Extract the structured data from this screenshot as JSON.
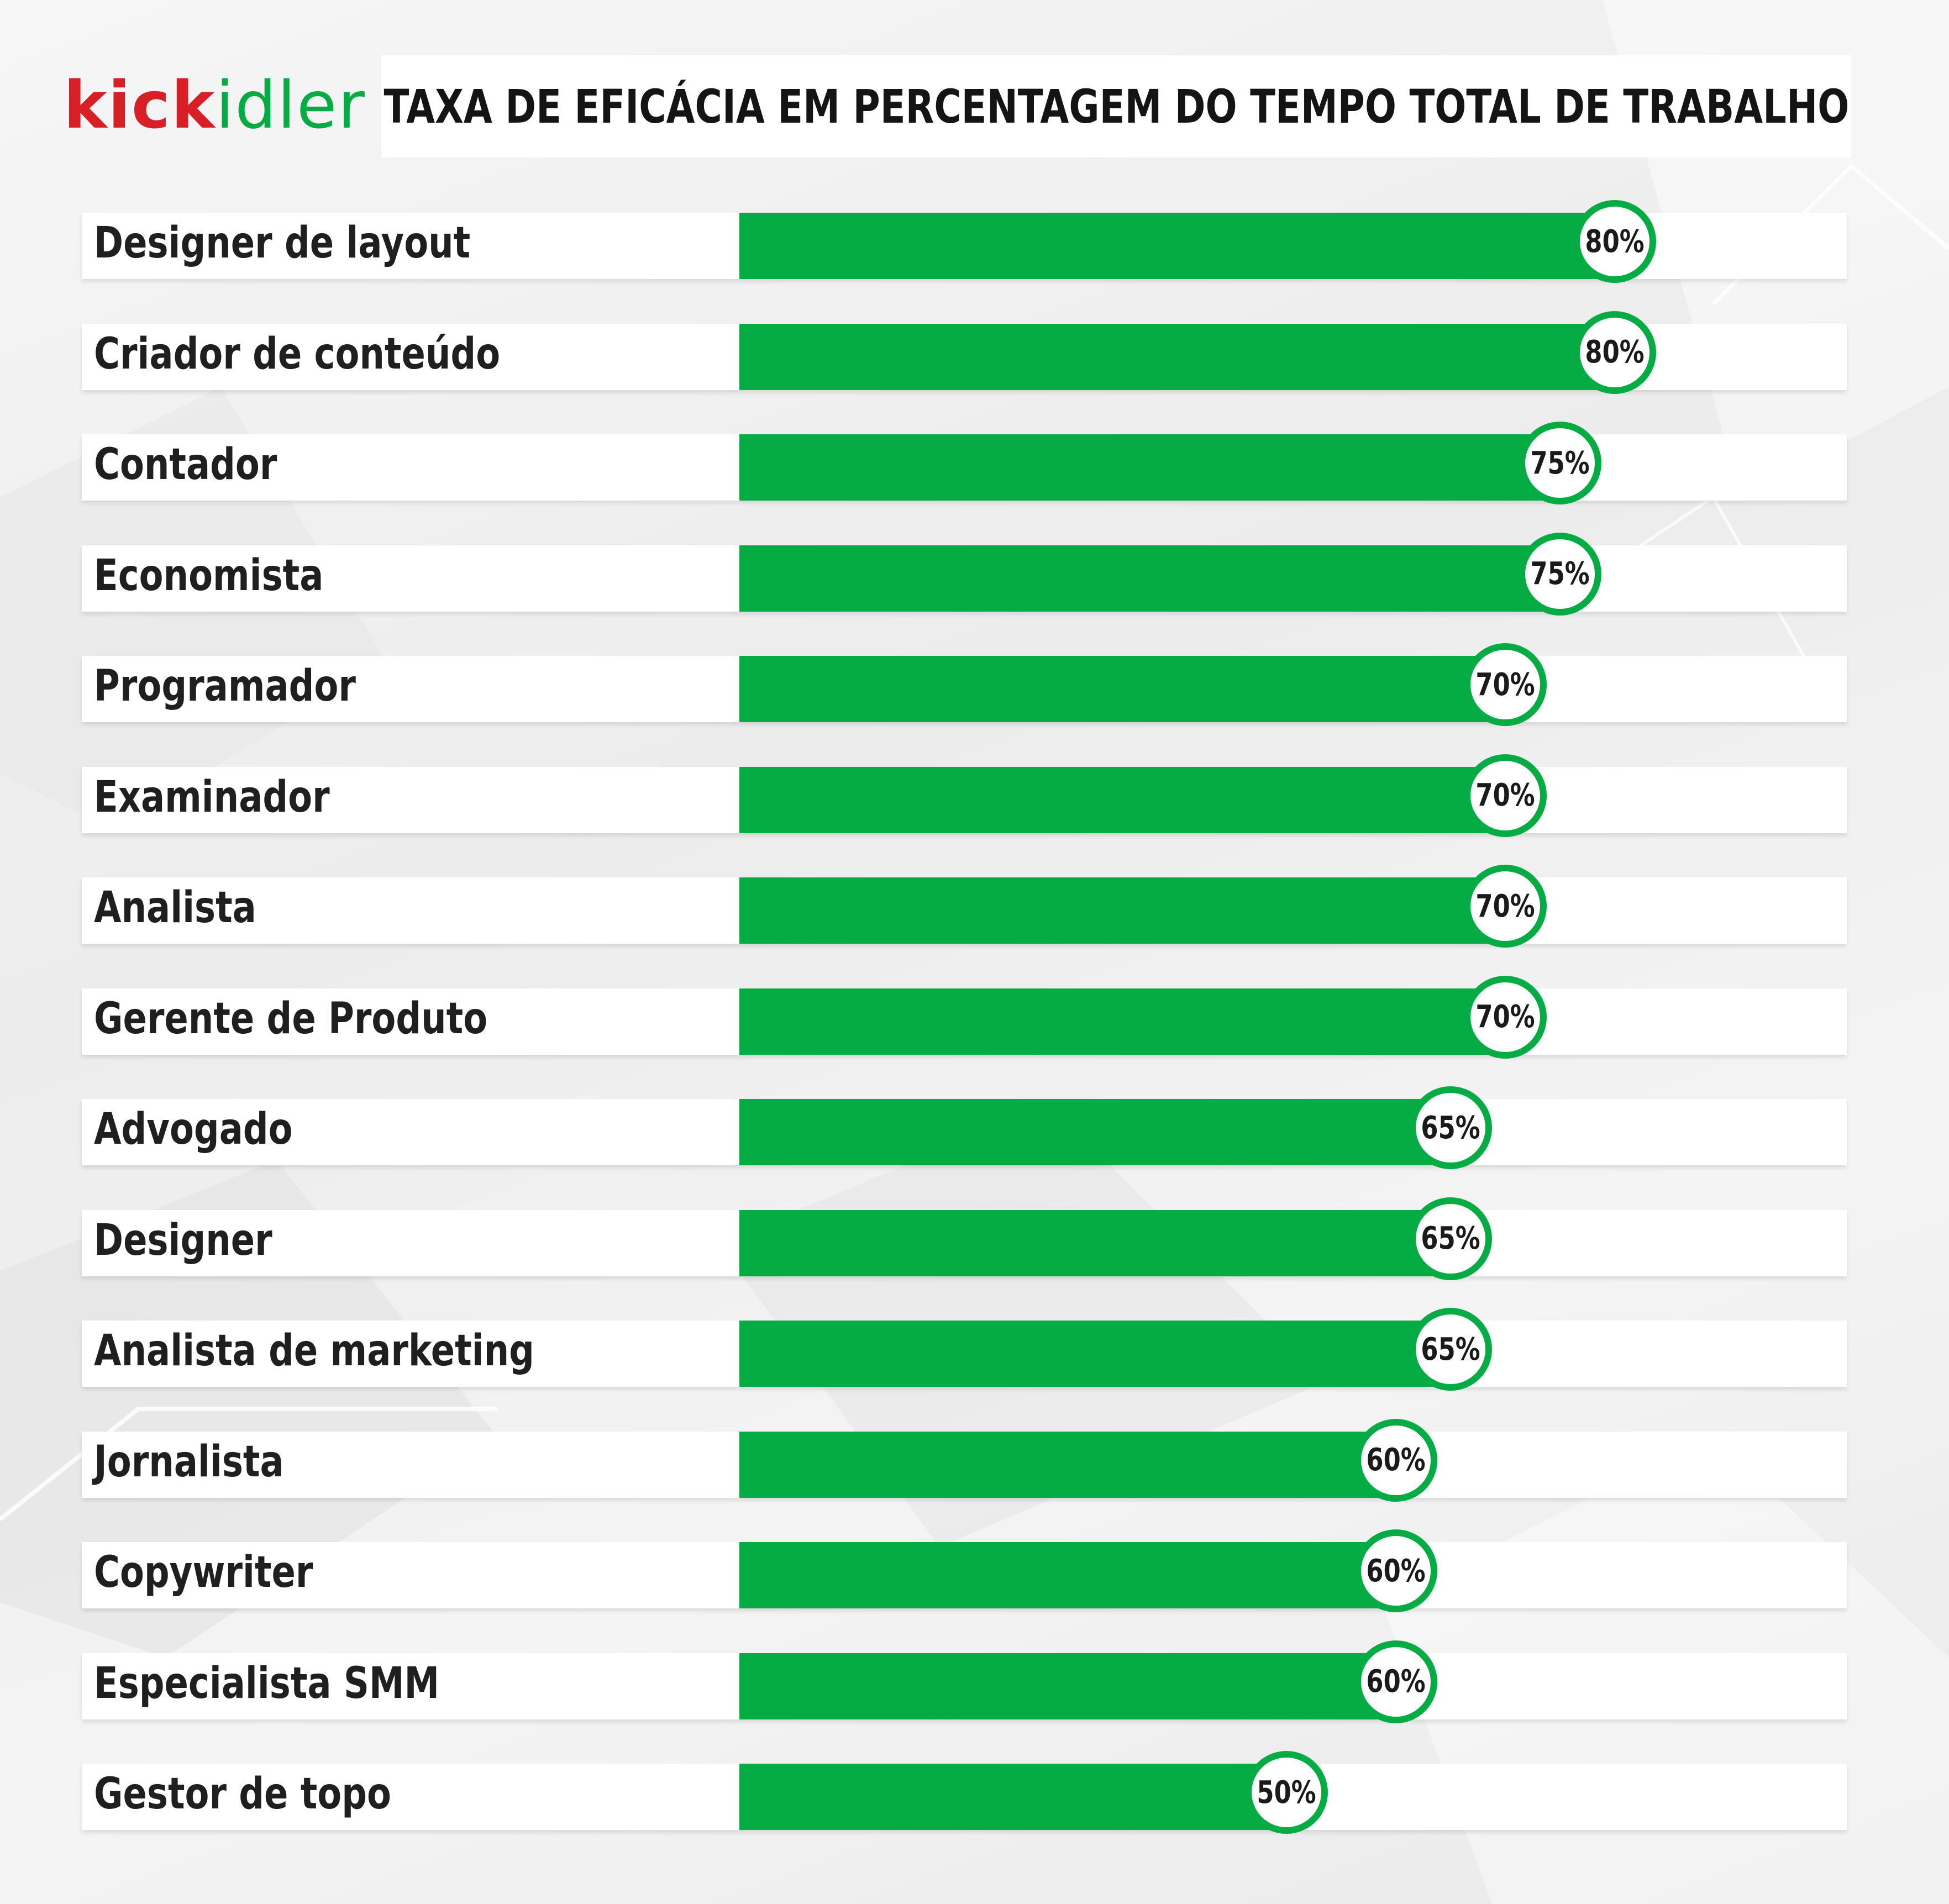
{
  "logo": {
    "part1": "kick",
    "part2": "idler"
  },
  "colors": {
    "bar": "#05ac44",
    "logo_red": "#d91f26",
    "logo_green": "#05ac44"
  },
  "chart_data": {
    "type": "bar",
    "orientation": "horizontal",
    "title": "TAXA DE EFICÁCIA EM PERCENTAGEM DO TEMPO TOTAL DE TRABALHO",
    "categories": [
      "Designer de layout",
      "Criador de conteúdo",
      "Contador",
      "Economista",
      "Programador",
      "Examinador",
      "Analista",
      "Gerente de Produto",
      "Advogado",
      "Designer",
      "Analista de marketing",
      "Jornalista",
      "Copywriter",
      "Especialista SMM",
      "Gestor de topo"
    ],
    "values": [
      80,
      80,
      75,
      75,
      70,
      70,
      70,
      70,
      65,
      65,
      65,
      60,
      60,
      60,
      50
    ],
    "value_labels": [
      "80%",
      "80%",
      "75%",
      "75%",
      "70%",
      "70%",
      "70%",
      "70%",
      "65%",
      "65%",
      "65%",
      "60%",
      "60%",
      "60%",
      "50%"
    ],
    "xlim": [
      0,
      100
    ],
    "grid": false,
    "legend": "none"
  }
}
